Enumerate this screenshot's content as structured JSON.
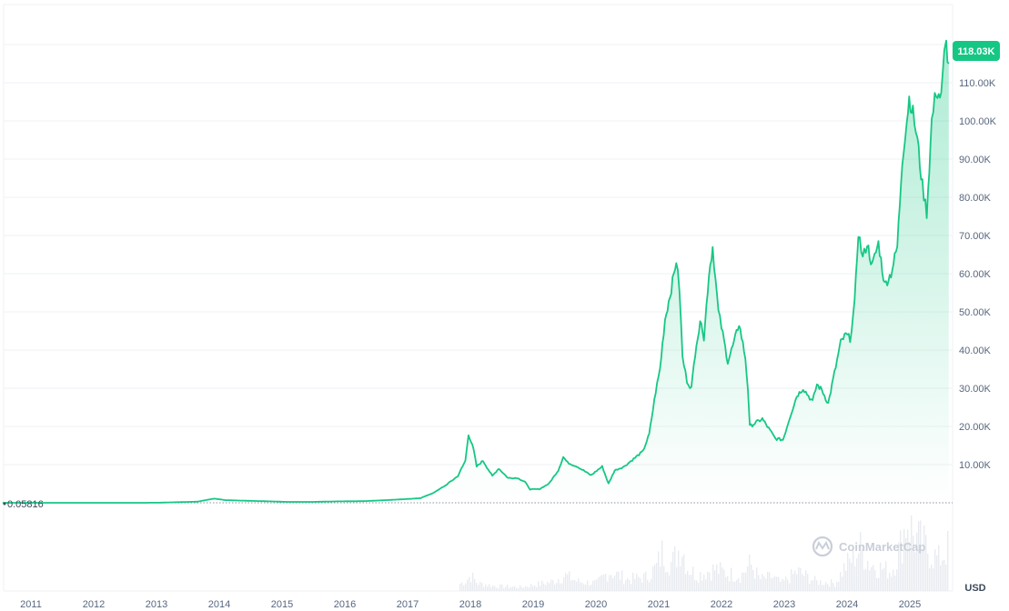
{
  "chart_data": {
    "type": "area",
    "x_years": [
      "2011",
      "2012",
      "2013",
      "2014",
      "2015",
      "2016",
      "2017",
      "2018",
      "2019",
      "2020",
      "2021",
      "2022",
      "2023",
      "2024",
      "2025"
    ],
    "y_ticks": [
      {
        "value": 10000,
        "label": "10.00K"
      },
      {
        "value": 20000,
        "label": "20.00K"
      },
      {
        "value": 30000,
        "label": "30.00K"
      },
      {
        "value": 40000,
        "label": "40.00K"
      },
      {
        "value": 50000,
        "label": "50.00K"
      },
      {
        "value": 60000,
        "label": "60.00K"
      },
      {
        "value": 70000,
        "label": "70.00K"
      },
      {
        "value": 80000,
        "label": "80.00K"
      },
      {
        "value": 90000,
        "label": "90.00K"
      },
      {
        "value": 100000,
        "label": "100.00K"
      },
      {
        "value": 110000,
        "label": "110.00K"
      }
    ],
    "ylim": [
      0,
      120000
    ],
    "current_price": {
      "value": 118030,
      "label": "118.03K"
    },
    "open_price": {
      "value": 0.05816,
      "label": "0.05816"
    },
    "unit": "USD",
    "grid": true,
    "points": [
      [
        2010.55,
        0.06
      ],
      [
        2012.0,
        5
      ],
      [
        2013.0,
        13
      ],
      [
        2013.65,
        300
      ],
      [
        2013.85,
        900
      ],
      [
        2013.92,
        1100
      ],
      [
        2014.1,
        700
      ],
      [
        2014.4,
        550
      ],
      [
        2014.8,
        380
      ],
      [
        2015.1,
        230
      ],
      [
        2015.5,
        250
      ],
      [
        2015.9,
        380
      ],
      [
        2016.3,
        430
      ],
      [
        2016.6,
        650
      ],
      [
        2016.95,
        950
      ],
      [
        2017.2,
        1200
      ],
      [
        2017.4,
        2500
      ],
      [
        2017.6,
        4500
      ],
      [
        2017.8,
        7000
      ],
      [
        2017.92,
        11000
      ],
      [
        2017.97,
        18000
      ],
      [
        2018.05,
        14000
      ],
      [
        2018.1,
        9500
      ],
      [
        2018.2,
        11000
      ],
      [
        2018.35,
        7000
      ],
      [
        2018.45,
        9000
      ],
      [
        2018.6,
        6500
      ],
      [
        2018.75,
        6500
      ],
      [
        2018.87,
        5500
      ],
      [
        2018.95,
        3500
      ],
      [
        2019.1,
        3600
      ],
      [
        2019.25,
        5000
      ],
      [
        2019.4,
        8500
      ],
      [
        2019.48,
        12000
      ],
      [
        2019.55,
        10500
      ],
      [
        2019.7,
        9500
      ],
      [
        2019.8,
        8500
      ],
      [
        2019.92,
        7200
      ],
      [
        2020.1,
        9500
      ],
      [
        2020.2,
        5000
      ],
      [
        2020.3,
        8500
      ],
      [
        2020.45,
        9500
      ],
      [
        2020.6,
        11500
      ],
      [
        2020.75,
        13500
      ],
      [
        2020.85,
        18000
      ],
      [
        2020.95,
        29000
      ],
      [
        2021.02,
        35000
      ],
      [
        2021.1,
        48000
      ],
      [
        2021.2,
        56000
      ],
      [
        2021.28,
        63500
      ],
      [
        2021.33,
        56000
      ],
      [
        2021.38,
        38000
      ],
      [
        2021.45,
        32000
      ],
      [
        2021.52,
        30000
      ],
      [
        2021.6,
        42000
      ],
      [
        2021.68,
        48000
      ],
      [
        2021.72,
        43000
      ],
      [
        2021.8,
        60000
      ],
      [
        2021.86,
        67000
      ],
      [
        2021.95,
        50000
      ],
      [
        2022.0,
        46000
      ],
      [
        2022.1,
        37000
      ],
      [
        2022.2,
        42000
      ],
      [
        2022.28,
        47000
      ],
      [
        2022.38,
        38000
      ],
      [
        2022.42,
        30000
      ],
      [
        2022.45,
        20000
      ],
      [
        2022.55,
        21000
      ],
      [
        2022.65,
        22000
      ],
      [
        2022.75,
        19500
      ],
      [
        2022.86,
        16800
      ],
      [
        2022.98,
        16500
      ],
      [
        2023.1,
        23000
      ],
      [
        2023.2,
        28000
      ],
      [
        2023.3,
        30000
      ],
      [
        2023.45,
        26500
      ],
      [
        2023.52,
        31000
      ],
      [
        2023.6,
        29500
      ],
      [
        2023.7,
        26000
      ],
      [
        2023.8,
        34000
      ],
      [
        2023.9,
        42000
      ],
      [
        2023.98,
        44000
      ],
      [
        2024.05,
        43000
      ],
      [
        2024.12,
        52000
      ],
      [
        2024.18,
        71000
      ],
      [
        2024.25,
        64000
      ],
      [
        2024.32,
        68000
      ],
      [
        2024.4,
        62000
      ],
      [
        2024.5,
        68000
      ],
      [
        2024.6,
        57000
      ],
      [
        2024.7,
        60000
      ],
      [
        2024.8,
        67000
      ],
      [
        2024.88,
        90000
      ],
      [
        2024.95,
        100000
      ],
      [
        2024.99,
        106000
      ],
      [
        2025.05,
        102000
      ],
      [
        2025.12,
        95000
      ],
      [
        2025.2,
        83000
      ],
      [
        2025.27,
        76000
      ],
      [
        2025.35,
        100000
      ],
      [
        2025.42,
        108000
      ],
      [
        2025.5,
        106000
      ],
      [
        2025.55,
        117000
      ],
      [
        2025.58,
        120000
      ],
      [
        2025.62,
        115000
      ]
    ],
    "volume": [
      [
        2017.7,
        0.05
      ],
      [
        2017.9,
        0.12
      ],
      [
        2018.0,
        0.2
      ],
      [
        2018.1,
        0.1
      ],
      [
        2018.4,
        0.06
      ],
      [
        2018.8,
        0.05
      ],
      [
        2019.3,
        0.12
      ],
      [
        2019.5,
        0.2
      ],
      [
        2019.7,
        0.12
      ],
      [
        2020.0,
        0.1
      ],
      [
        2020.2,
        0.25
      ],
      [
        2020.5,
        0.15
      ],
      [
        2020.8,
        0.18
      ],
      [
        2020.95,
        0.3
      ],
      [
        2021.05,
        0.5
      ],
      [
        2021.2,
        0.35
      ],
      [
        2021.35,
        0.6
      ],
      [
        2021.45,
        0.3
      ],
      [
        2021.6,
        0.2
      ],
      [
        2021.75,
        0.25
      ],
      [
        2021.9,
        0.28
      ],
      [
        2022.1,
        0.22
      ],
      [
        2022.3,
        0.2
      ],
      [
        2022.45,
        0.35
      ],
      [
        2022.6,
        0.15
      ],
      [
        2022.8,
        0.18
      ],
      [
        2022.95,
        0.1
      ],
      [
        2023.2,
        0.25
      ],
      [
        2023.5,
        0.12
      ],
      [
        2023.8,
        0.1
      ],
      [
        2023.95,
        0.3
      ],
      [
        2024.1,
        0.45
      ],
      [
        2024.2,
        0.55
      ],
      [
        2024.35,
        0.35
      ],
      [
        2024.5,
        0.3
      ],
      [
        2024.7,
        0.25
      ],
      [
        2024.85,
        0.6
      ],
      [
        2024.95,
        0.95
      ],
      [
        2025.05,
        0.7
      ],
      [
        2025.2,
        0.6
      ],
      [
        2025.3,
        0.5
      ],
      [
        2025.45,
        0.4
      ],
      [
        2025.6,
        0.55
      ]
    ]
  },
  "watermark": {
    "text": "CoinMarketCap"
  },
  "colors": {
    "line": "#16c784",
    "badge": "#16c784",
    "grid": "#eff2f5",
    "open_line": "#8a95a8",
    "volume": "#e8ebf0",
    "brand": "#c9ced8"
  }
}
